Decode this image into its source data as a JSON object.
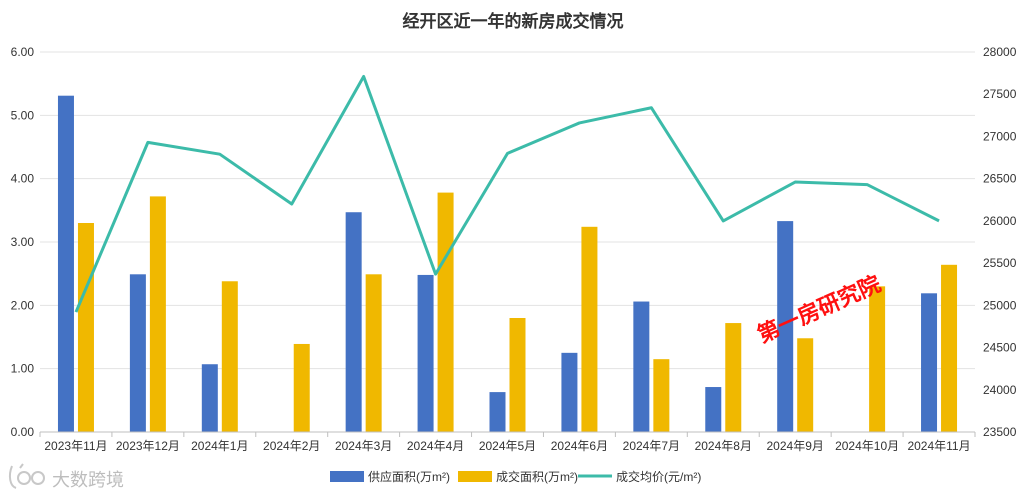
{
  "chart_data": {
    "type": "bar",
    "title": "经开区近一年的新房成交情况",
    "categories": [
      "2023年11月",
      "2023年12月",
      "2024年1月",
      "2024年2月",
      "2024年3月",
      "2024年4月",
      "2024年5月",
      "2024年6月",
      "2024年7月",
      "2024年8月",
      "2024年9月",
      "2024年10月",
      "2024年11月"
    ],
    "series": [
      {
        "name": "供应面积(万m²)",
        "kind": "bar",
        "axis": "left",
        "color": "#4472C4",
        "values": [
          5.31,
          2.49,
          1.07,
          null,
          3.47,
          2.48,
          0.63,
          1.25,
          2.06,
          0.71,
          3.33,
          null,
          2.19
        ]
      },
      {
        "name": "成交面积(万m²)",
        "kind": "bar",
        "axis": "left",
        "color": "#F0B800",
        "values": [
          3.3,
          3.72,
          2.38,
          1.39,
          2.49,
          3.78,
          1.8,
          3.24,
          1.15,
          1.72,
          1.48,
          2.3,
          2.64
        ]
      },
      {
        "name": "成交均价(元/m²)",
        "kind": "line",
        "axis": "right",
        "color": "#3CBBA9",
        "values": [
          24920,
          26930,
          26790,
          26200,
          27710,
          25370,
          26800,
          27160,
          27340,
          26000,
          26460,
          26430,
          26000
        ]
      }
    ],
    "left_axis": {
      "min": 0,
      "max": 6,
      "step": 1,
      "ticks": [
        "0.00",
        "1.00",
        "2.00",
        "3.00",
        "4.00",
        "5.00",
        "6.00"
      ]
    },
    "right_axis": {
      "min": 23500,
      "max": 28000,
      "step": 500,
      "ticks": [
        "23500",
        "24000",
        "24500",
        "25000",
        "25500",
        "26000",
        "26500",
        "27000",
        "27500",
        "28000"
      ]
    },
    "grid": true,
    "legend_position": "bottom"
  },
  "watermark": "第一房研究院",
  "logo": {
    "text": "大数跨境",
    "icon": "ic-logo-icon"
  }
}
